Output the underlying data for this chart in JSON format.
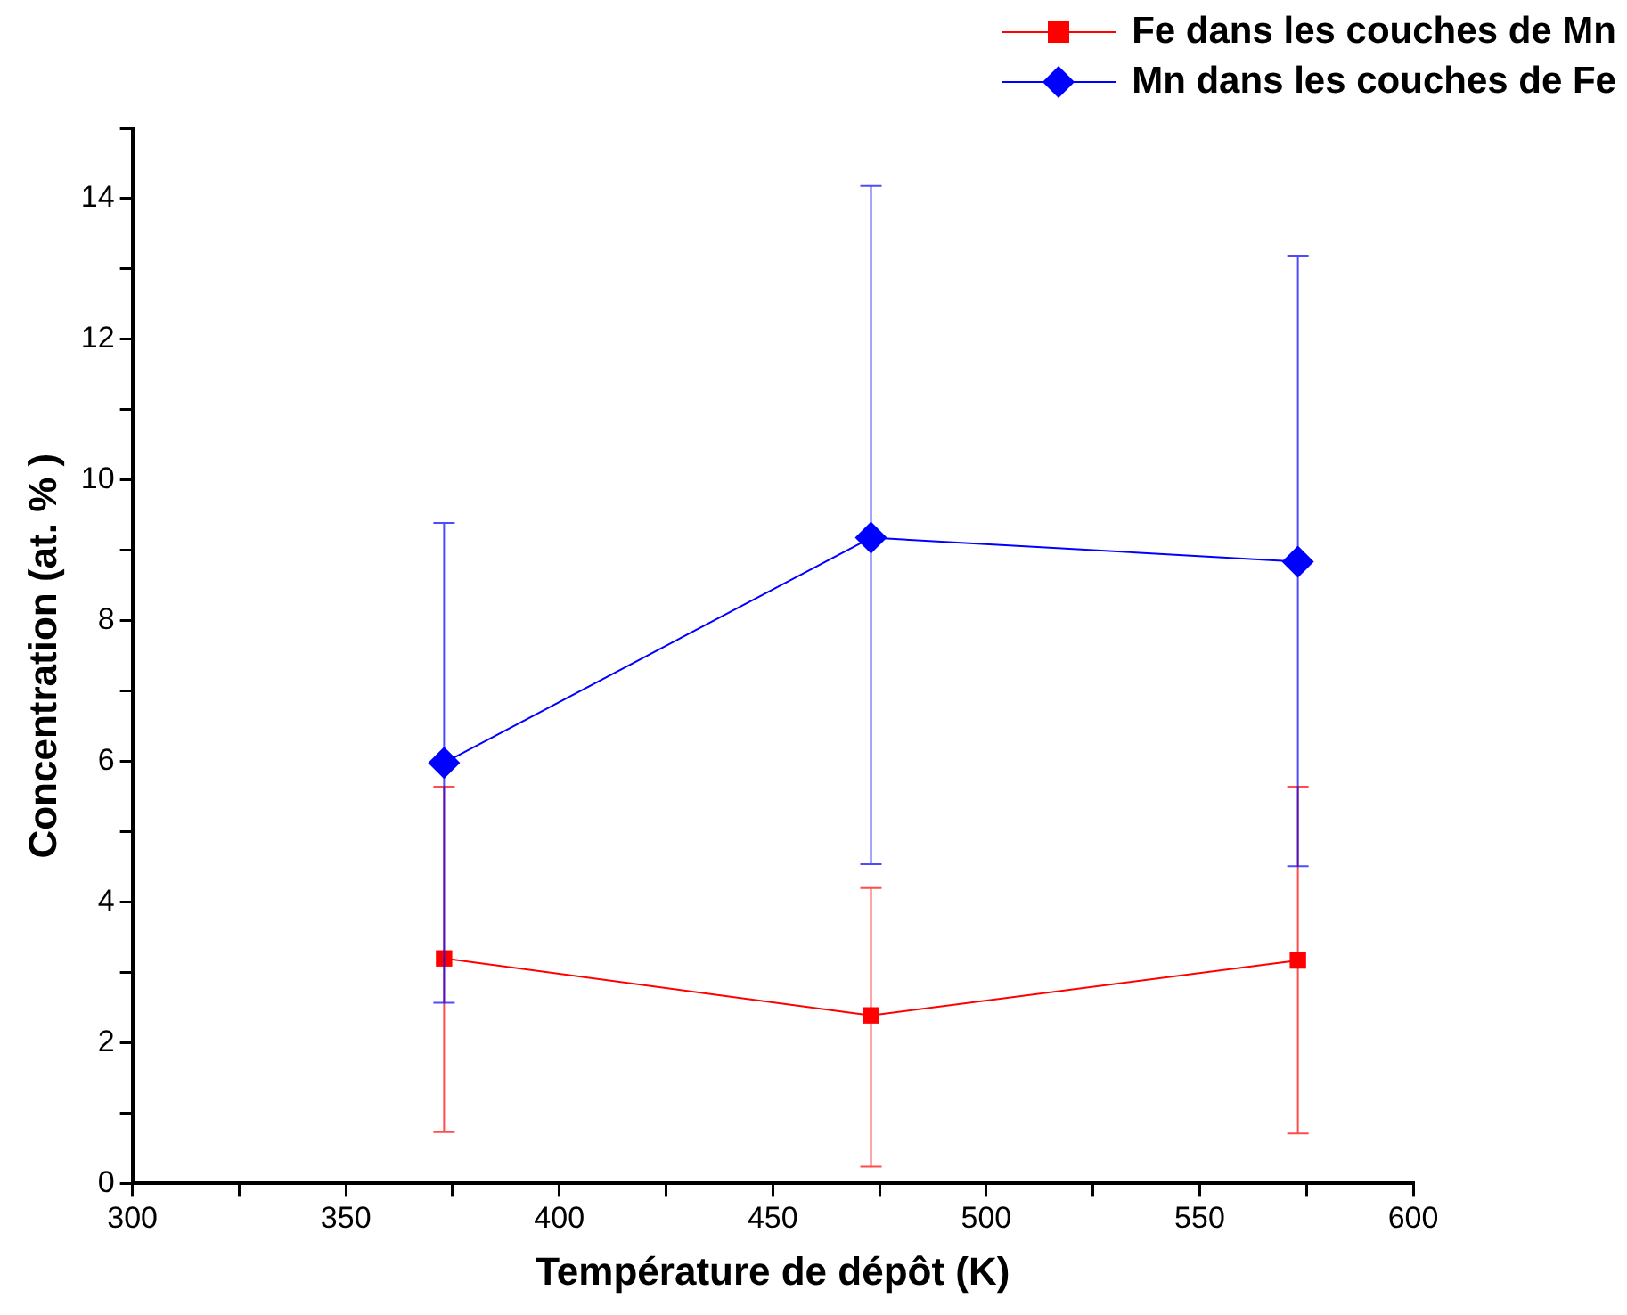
{
  "chart_data": {
    "type": "line",
    "xlabel": "Température de dépôt (K)",
    "ylabel": "Concentration (at. % )",
    "x": [
      373,
      473,
      573
    ],
    "series": [
      {
        "name": "Fe dans les couches de Mn",
        "color": "#ff0000",
        "marker": "square",
        "values": [
          3.2,
          2.39,
          3.17
        ],
        "errors": [
          [
            0.73,
            5.64
          ],
          [
            0.24,
            4.2
          ],
          [
            0.71,
            5.64
          ]
        ]
      },
      {
        "name": "Mn dans les couches de Fe",
        "color": "#0000ff",
        "marker": "diamond",
        "values": [
          5.98,
          9.18,
          8.84
        ],
        "errors": [
          [
            2.57,
            9.39
          ],
          [
            4.54,
            14.18
          ],
          [
            4.51,
            13.19
          ]
        ]
      }
    ],
    "xlim": [
      300,
      600
    ],
    "xticks": [
      300,
      {
        "value": 325,
        "label": null
      },
      350,
      {
        "value": 375,
        "label": null
      },
      400,
      {
        "value": 425,
        "label": null
      },
      450,
      {
        "value": 475,
        "label": null
      },
      500,
      {
        "value": 525,
        "label": null
      },
      550,
      {
        "value": 575,
        "label": null
      },
      600
    ],
    "ylim": [
      0,
      15
    ],
    "yticks": [
      0,
      {
        "value": 1,
        "label": null
      },
      2,
      {
        "value": 3,
        "label": null
      },
      4,
      {
        "value": 5,
        "label": null
      },
      6,
      {
        "value": 7,
        "label": null
      },
      8,
      {
        "value": 9,
        "label": null
      },
      10,
      {
        "value": 11,
        "label": null
      },
      12,
      {
        "value": 13,
        "label": null
      },
      14,
      {
        "value": 15,
        "label": null
      }
    ],
    "grid": false,
    "legend": "top right",
    "line_style": "solid"
  }
}
